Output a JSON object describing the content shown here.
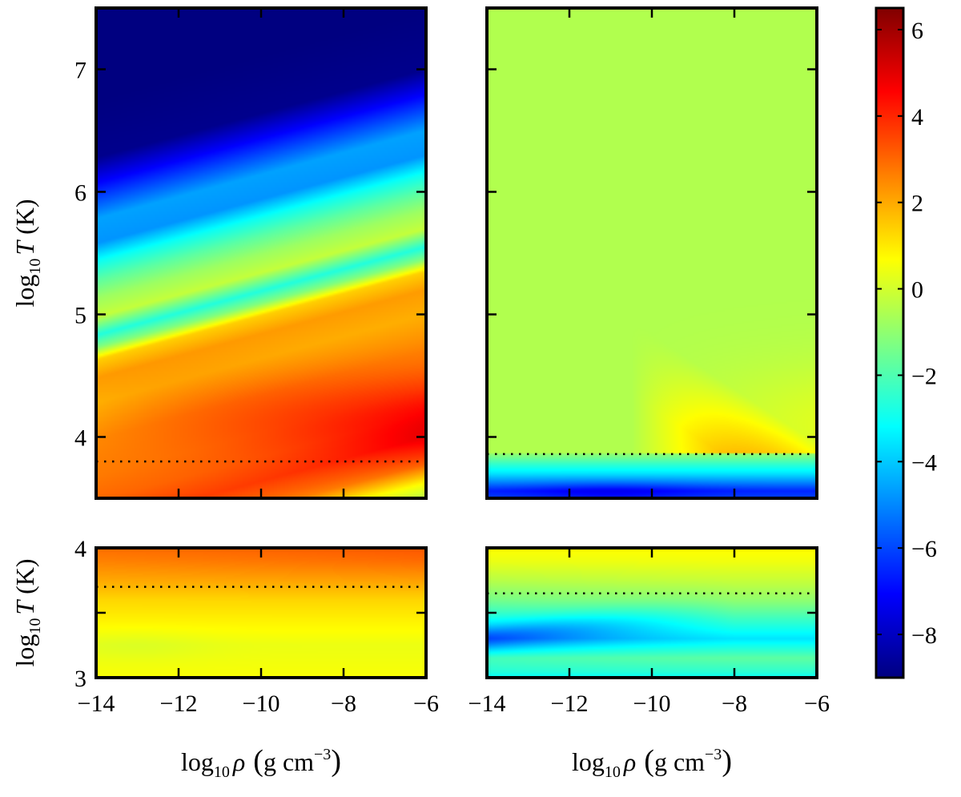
{
  "chart_data": {
    "type": "heatmap",
    "colormap": "jet",
    "colorbar": {
      "range": [
        -9,
        6.5
      ],
      "ticks": [
        6,
        4,
        2,
        0,
        -2,
        -4,
        -6,
        -8
      ],
      "tick_labels": [
        "6",
        "4",
        "2",
        "0",
        "−2",
        "−4",
        "−6",
        "−8"
      ]
    },
    "panels": [
      {
        "id": "top-left",
        "x_range": [
          -14,
          -6
        ],
        "y_range": [
          3.5,
          7.5
        ],
        "y_ticks": [
          4,
          5,
          6,
          7
        ],
        "y_tick_labels": [
          "4",
          "5",
          "6",
          "7"
        ],
        "x_ticks": [
          -14,
          -12,
          -10,
          -8,
          -6
        ],
        "dashed_line_y": 3.8,
        "value_profile": {
          "y": [
            3.5,
            3.62,
            3.7,
            3.78,
            3.85,
            4.0,
            4.2,
            4.4,
            4.7,
            5.0,
            5.2,
            5.35,
            5.45,
            5.55,
            5.7,
            5.85,
            6.0,
            6.15,
            6.3,
            6.5,
            7.0,
            7.5
          ],
          "v": [
            -0.5,
            0.5,
            1.6,
            2.6,
            3.0,
            3.6,
            3.0,
            2.7,
            2.5,
            1.9,
            2.2,
            1.4,
            -1.2,
            -2.7,
            -0.2,
            -0.8,
            -1.8,
            -3.0,
            -4.8,
            -4.6,
            -8.8,
            -9.0
          ]
        },
        "density_trend": {
          "rho_at_max": -6,
          "shift_per_dex": 0.09,
          "boost_y": [
            3.8,
            4.5
          ],
          "boost": 1.6
        }
      },
      {
        "id": "top-right",
        "x_range": [
          -14,
          -6
        ],
        "y_range": [
          3.5,
          7.5
        ],
        "y_ticks": [
          4,
          5,
          6,
          7
        ],
        "x_ticks": [
          -14,
          -12,
          -10,
          -8,
          -6
        ],
        "dashed_line_y": 3.86,
        "background_value": -0.5,
        "feature": "orange wedge toward high density and low temperature; blue band below the dashed line",
        "value_profile": {
          "y": [
            3.5,
            3.56,
            3.63,
            3.7,
            3.78,
            3.86
          ],
          "v": [
            -6.0,
            -6.5,
            -5.0,
            -3.6,
            -2.4,
            -1.0
          ]
        }
      },
      {
        "id": "bottom-left",
        "x_range": [
          -14,
          -6
        ],
        "y_range": [
          3.0,
          4.0
        ],
        "y_ticks": [
          3,
          3.5,
          4
        ],
        "y_tick_labels": [
          "3",
          "",
          "4"
        ],
        "x_ticks": [
          -14,
          -12,
          -10,
          -8,
          -6
        ],
        "x_tick_labels": [
          "−14",
          "−12",
          "−10",
          "−8",
          "−6"
        ],
        "dashed_line_y": 3.7,
        "value_profile": {
          "y": [
            3.0,
            3.25,
            3.45,
            3.6,
            3.75,
            3.9,
            4.0
          ],
          "v": [
            0.6,
            0.4,
            0.9,
            1.3,
            2.0,
            2.6,
            2.9
          ]
        }
      },
      {
        "id": "bottom-right",
        "x_range": [
          -14,
          -6
        ],
        "y_range": [
          3.0,
          4.0
        ],
        "y_ticks": [
          3,
          3.5,
          4
        ],
        "x_ticks": [
          -14,
          -12,
          -10,
          -8,
          -6
        ],
        "x_tick_labels": [
          "−14",
          "−12",
          "−10",
          "−8",
          "−6"
        ],
        "dashed_line_y": 3.65,
        "feature": "blue wedge at low density near log T 3.3; cyan band near log T 3.0; yellow near log T 4.0",
        "value_profile": {
          "y": [
            3.0,
            3.05,
            3.15,
            3.3,
            3.45,
            3.6,
            3.75,
            3.9,
            4.0
          ],
          "v": [
            -3.2,
            -2.6,
            -2.0,
            -4.0,
            -2.8,
            -1.4,
            -0.4,
            0.4,
            0.7
          ]
        }
      }
    ],
    "ylabel_top": {
      "pre": "log",
      "sub": "10",
      "var": "T",
      "post": "(K)"
    },
    "ylabel_bottom": {
      "pre": "log",
      "sub": "10",
      "var": "T",
      "post": "(K)"
    },
    "xlabel": {
      "pre": "log",
      "sub": "10",
      "var": "ρ",
      "units": "g cm",
      "exp": "−3"
    }
  }
}
